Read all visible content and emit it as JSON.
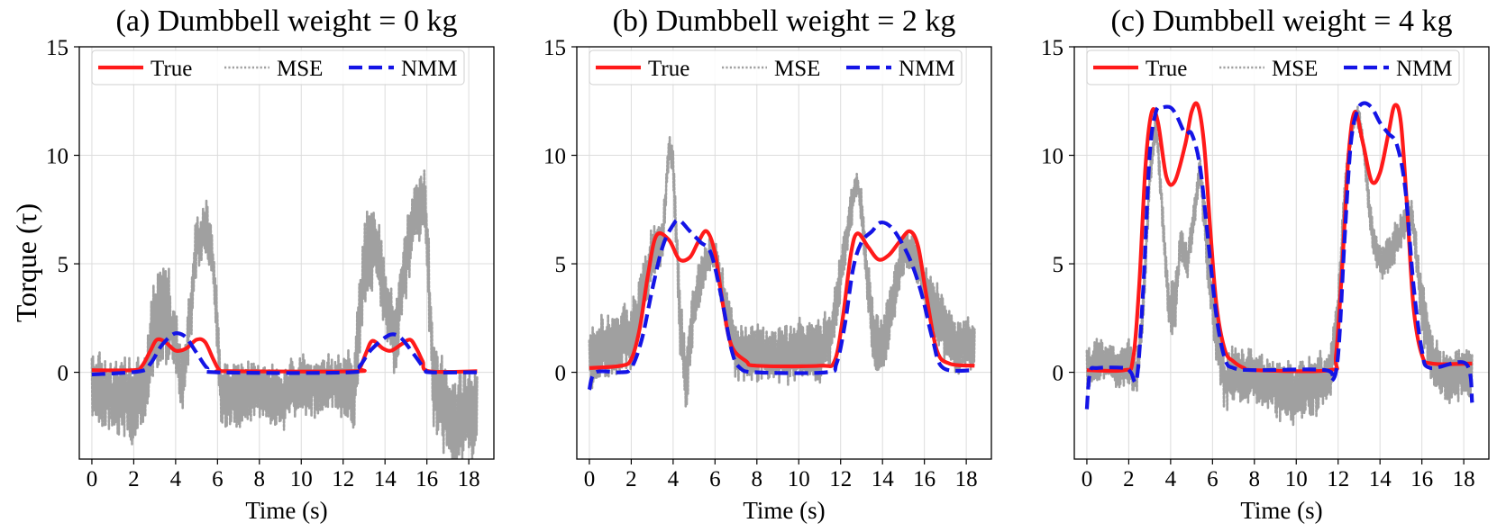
{
  "figure": {
    "ylabel": "Torque (τ)"
  },
  "colors": {
    "True": "#ff1a1a",
    "MSE": "#a0a0a0",
    "NMM": "#1414e6"
  },
  "chart_data": [
    {
      "type": "line",
      "title": "(a) Dumbbell weight = 0 kg",
      "xlabel": "Time (s)",
      "ylabel": "Torque (τ)",
      "xlim": [
        -0.6,
        19.2
      ],
      "ylim": [
        -4,
        15
      ],
      "xticks": [
        0,
        2,
        4,
        6,
        8,
        10,
        12,
        14,
        16,
        18
      ],
      "yticks": [
        0,
        5,
        10,
        15
      ],
      "grid": true,
      "legend": {
        "position": "top",
        "entries": [
          "True",
          "MSE",
          "NMM"
        ]
      },
      "series": [
        {
          "name": "True",
          "style": "solid",
          "x": [
            0,
            2.0,
            2.4,
            2.8,
            3.1,
            3.5,
            4.0,
            4.5,
            5.0,
            5.4,
            5.8,
            6.1,
            6.5,
            12.5,
            12.8,
            13.1,
            13.4,
            13.9,
            14.3,
            14.8,
            15.2,
            15.5,
            15.8,
            16.1,
            18.4
          ],
          "y": [
            0.1,
            0.1,
            0.3,
            1.0,
            1.5,
            1.4,
            1.0,
            1.1,
            1.5,
            1.4,
            0.6,
            0.1,
            0.05,
            0.05,
            0.2,
            0.9,
            1.45,
            1.1,
            1.0,
            1.3,
            1.5,
            1.1,
            0.5,
            0.05,
            0.05
          ]
        },
        {
          "name": "NMM",
          "style": "dashed",
          "x": [
            0,
            2.3,
            2.8,
            3.3,
            3.8,
            4.1,
            4.5,
            5.0,
            5.5,
            6.0,
            12.3,
            12.8,
            13.3,
            14.0,
            14.4,
            14.8,
            15.4,
            15.9,
            16.2,
            18.4
          ],
          "y": [
            -0.1,
            0.05,
            0.4,
            1.2,
            1.7,
            1.8,
            1.6,
            0.9,
            0.2,
            0.0,
            0.0,
            0.3,
            1.0,
            1.6,
            1.75,
            1.55,
            0.8,
            0.15,
            0.0,
            0.0
          ],
          "noise_ends": true
        },
        {
          "name": "MSE",
          "style": "dotted",
          "noisy": true,
          "x": [
            0,
            0.5,
            1.0,
            1.5,
            2.0,
            2.5,
            3.0,
            3.5,
            4.0,
            4.3,
            4.6,
            5.0,
            5.5,
            5.8,
            6.2,
            7.0,
            8.0,
            9.0,
            10.0,
            11.0,
            12.0,
            12.5,
            13.0,
            13.5,
            14.0,
            14.5,
            15.0,
            15.5,
            15.9,
            16.3,
            17.0,
            17.5,
            18.0,
            18.4
          ],
          "y": [
            -0.5,
            -1.0,
            -1.2,
            -1.0,
            -1.5,
            -1.0,
            2.5,
            3.0,
            1.5,
            -0.5,
            1.5,
            6.0,
            6.5,
            5.0,
            -1.5,
            -1.0,
            -0.8,
            -1.2,
            -0.5,
            -0.7,
            -0.5,
            -1.0,
            5.0,
            6.0,
            3.5,
            1.5,
            5.5,
            7.5,
            8.0,
            -0.5,
            -2.0,
            -2.5,
            -1.5,
            -2.0
          ],
          "amp": [
            1.6,
            1.8,
            1.6,
            1.8,
            1.8,
            1.5,
            2.0,
            2.2,
            1.5,
            1.6,
            1.5,
            1.2,
            1.2,
            1.5,
            1.8,
            1.5,
            1.3,
            1.3,
            1.4,
            1.3,
            1.5,
            1.8,
            2.2,
            1.8,
            1.6,
            1.6,
            1.8,
            1.5,
            1.6,
            2.2,
            2.2,
            2.2,
            2.2,
            2.0
          ]
        }
      ]
    },
    {
      "type": "line",
      "title": "(b) Dumbbell weight = 2 kg",
      "xlabel": "Time (s)",
      "ylabel": "",
      "xlim": [
        -0.6,
        19.2
      ],
      "ylim": [
        -4,
        15
      ],
      "xticks": [
        0,
        2,
        4,
        6,
        8,
        10,
        12,
        14,
        16,
        18
      ],
      "yticks": [
        0,
        5,
        10,
        15
      ],
      "grid": true,
      "legend": {
        "position": "top",
        "entries": [
          "True",
          "MSE",
          "NMM"
        ]
      },
      "series": [
        {
          "name": "True",
          "style": "solid",
          "x": [
            0,
            1.5,
            2.0,
            2.4,
            2.8,
            3.2,
            3.8,
            4.3,
            4.8,
            5.2,
            5.6,
            6.0,
            6.4,
            6.8,
            7.5,
            8.0,
            11.0,
            11.7,
            12.1,
            12.5,
            12.8,
            13.3,
            13.8,
            14.3,
            14.8,
            15.3,
            15.7,
            16.1,
            16.6,
            17.2,
            18.4
          ],
          "y": [
            0.2,
            0.3,
            0.6,
            2.0,
            4.5,
            6.3,
            6.1,
            5.2,
            5.3,
            6.0,
            6.5,
            5.5,
            3.0,
            1.2,
            0.5,
            0.3,
            0.3,
            0.5,
            2.5,
            5.5,
            6.4,
            5.8,
            5.2,
            5.4,
            6.0,
            6.5,
            5.8,
            3.5,
            1.0,
            0.4,
            0.3
          ]
        },
        {
          "name": "NMM",
          "style": "dashed",
          "x": [
            0,
            0.3,
            1.5,
            2.0,
            2.5,
            3.0,
            3.5,
            4.0,
            4.3,
            4.8,
            5.3,
            5.8,
            6.3,
            6.8,
            7.2,
            8.0,
            11.3,
            11.8,
            12.2,
            12.6,
            13.0,
            13.5,
            13.9,
            14.4,
            14.9,
            15.4,
            15.9,
            16.4,
            16.9,
            18.4
          ],
          "y": [
            -0.8,
            0.0,
            0.0,
            0.2,
            1.5,
            3.8,
            5.8,
            6.8,
            7.0,
            6.5,
            6.0,
            5.5,
            3.5,
            1.0,
            0.2,
            0.0,
            0.0,
            0.4,
            2.2,
            4.8,
            6.0,
            6.5,
            6.9,
            6.7,
            6.0,
            5.0,
            3.5,
            1.5,
            0.2,
            0.1
          ]
        },
        {
          "name": "MSE",
          "style": "dotted",
          "noisy": true,
          "x": [
            0,
            0.5,
            1.0,
            1.5,
            2.0,
            2.5,
            3.0,
            3.5,
            3.8,
            4.0,
            4.3,
            4.6,
            5.0,
            5.5,
            6.0,
            6.5,
            7.0,
            8.0,
            9.0,
            10.0,
            11.0,
            11.5,
            12.0,
            12.5,
            12.8,
            13.0,
            13.3,
            13.6,
            14.0,
            14.5,
            15.0,
            15.5,
            16.0,
            16.5,
            17.0,
            17.5,
            18.0,
            18.4
          ],
          "y": [
            0.5,
            1.0,
            1.2,
            1.5,
            1.5,
            3.5,
            5.5,
            6.0,
            10.5,
            9.5,
            3.0,
            -0.5,
            3.0,
            5.0,
            5.5,
            3.0,
            1.0,
            0.8,
            0.8,
            1.0,
            1.0,
            1.5,
            4.5,
            7.5,
            8.8,
            7.5,
            4.0,
            1.5,
            1.0,
            3.5,
            5.5,
            5.5,
            4.0,
            3.0,
            2.0,
            1.0,
            1.5,
            1.0
          ],
          "amp": [
            1.5,
            1.4,
            1.5,
            1.4,
            1.5,
            1.3,
            1.2,
            0.8,
            0.6,
            0.8,
            1.5,
            1.4,
            1.2,
            0.8,
            0.8,
            1.0,
            1.3,
            1.3,
            1.3,
            1.3,
            1.4,
            1.3,
            1.0,
            0.8,
            0.5,
            0.8,
            1.2,
            1.5,
            1.4,
            1.2,
            0.9,
            0.8,
            1.0,
            1.2,
            1.3,
            1.2,
            1.2,
            1.2
          ]
        }
      ]
    },
    {
      "type": "line",
      "title": "(c) Dumbbell weight = 4 kg",
      "xlabel": "Time (s)",
      "ylabel": "",
      "xlim": [
        -0.6,
        19.2
      ],
      "ylim": [
        -4,
        15
      ],
      "xticks": [
        0,
        2,
        4,
        6,
        8,
        10,
        12,
        14,
        16,
        18
      ],
      "yticks": [
        0,
        5,
        10,
        15
      ],
      "grid": true,
      "legend": {
        "position": "top",
        "entries": [
          "True",
          "MSE",
          "NMM"
        ]
      },
      "series": [
        {
          "name": "True",
          "style": "solid",
          "x": [
            0,
            1.8,
            2.2,
            2.5,
            2.8,
            3.1,
            3.4,
            3.8,
            4.2,
            4.7,
            5.0,
            5.3,
            5.6,
            5.9,
            6.2,
            6.6,
            7.0,
            7.5,
            8.0,
            11.6,
            11.9,
            12.2,
            12.5,
            12.8,
            13.2,
            13.6,
            14.0,
            14.4,
            14.7,
            15.0,
            15.3,
            15.6,
            16.0,
            16.5,
            18.4
          ],
          "y": [
            0.1,
            0.1,
            0.6,
            4.0,
            9.5,
            12.0,
            11.5,
            9.0,
            8.8,
            10.5,
            12.0,
            12.3,
            10.5,
            6.5,
            3.0,
            1.0,
            0.5,
            0.2,
            0.1,
            0.1,
            0.8,
            5.0,
            10.0,
            12.0,
            10.5,
            8.8,
            9.2,
            11.0,
            12.3,
            11.5,
            7.5,
            3.0,
            0.8,
            0.4,
            0.4
          ]
        },
        {
          "name": "NMM",
          "style": "dashed",
          "x": [
            0,
            0.15,
            0.5,
            1.8,
            2.1,
            2.4,
            2.7,
            3.0,
            3.3,
            3.6,
            4.0,
            4.3,
            4.7,
            5.0,
            5.4,
            5.8,
            6.2,
            6.6,
            7.0,
            8.0,
            11.4,
            11.7,
            12.0,
            12.3,
            12.6,
            12.9,
            13.2,
            13.6,
            14.0,
            14.4,
            14.8,
            15.2,
            15.6,
            16.0,
            16.4,
            18.1,
            18.4
          ],
          "y": [
            -1.7,
            0.0,
            0.2,
            0.2,
            0.0,
            -0.2,
            4.0,
            10.0,
            12.0,
            12.2,
            12.2,
            11.8,
            11.0,
            11.0,
            9.5,
            6.0,
            2.5,
            0.6,
            0.2,
            0.1,
            0.1,
            -0.4,
            0.8,
            6.0,
            10.5,
            12.0,
            12.4,
            12.2,
            11.5,
            11.0,
            10.5,
            8.5,
            4.0,
            1.0,
            0.2,
            0.4,
            -1.4
          ]
        },
        {
          "name": "MSE",
          "style": "dotted",
          "noisy": true,
          "x": [
            0,
            0.5,
            1.0,
            1.5,
            2.0,
            2.4,
            2.7,
            3.0,
            3.3,
            3.6,
            3.9,
            4.2,
            4.5,
            4.8,
            5.1,
            5.4,
            5.8,
            6.2,
            6.6,
            7.0,
            8.0,
            9.0,
            10.0,
            11.0,
            11.6,
            12.0,
            12.3,
            12.6,
            12.9,
            13.2,
            13.6,
            14.0,
            14.5,
            15.0,
            15.5,
            16.0,
            16.5,
            17.0,
            18.0,
            18.4
          ],
          "y": [
            0.0,
            0.5,
            0.5,
            0.0,
            0.5,
            0.0,
            3.0,
            9.0,
            11.5,
            7.5,
            3.0,
            3.0,
            6.0,
            5.0,
            7.0,
            9.5,
            5.0,
            1.5,
            -0.5,
            0.0,
            -0.3,
            -0.7,
            -1.0,
            -0.5,
            -0.3,
            3.0,
            8.0,
            11.0,
            12.0,
            10.5,
            6.5,
            5.0,
            5.5,
            6.5,
            7.5,
            3.0,
            0.5,
            -0.3,
            0.0,
            0.0
          ],
          "amp": [
            1.0,
            1.0,
            1.0,
            1.0,
            1.0,
            1.0,
            0.8,
            0.6,
            0.6,
            0.8,
            1.2,
            1.2,
            0.8,
            0.8,
            0.8,
            0.6,
            1.2,
            1.4,
            1.3,
            1.3,
            1.3,
            1.3,
            1.3,
            1.3,
            1.2,
            1.0,
            0.7,
            0.5,
            0.5,
            0.6,
            0.8,
            0.8,
            0.8,
            0.8,
            0.7,
            1.2,
            1.2,
            1.1,
            1.1,
            1.2
          ]
        }
      ]
    }
  ]
}
